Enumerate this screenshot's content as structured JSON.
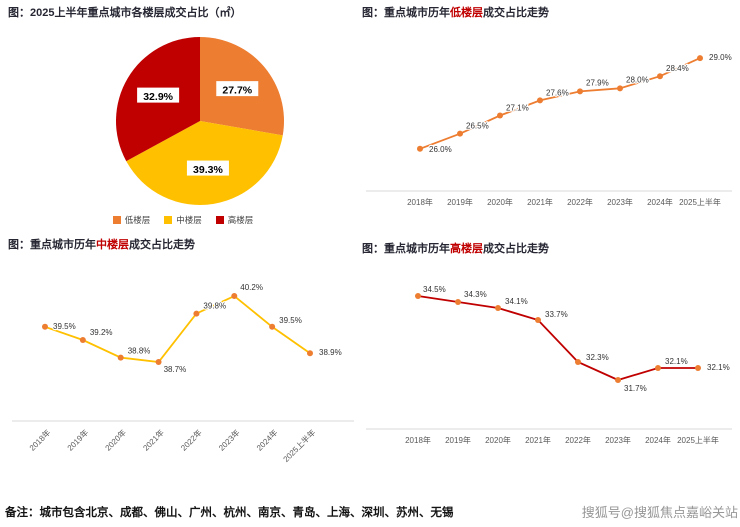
{
  "colors": {
    "orange": "#ED7D31",
    "yellow": "#FFC000",
    "red": "#C00000",
    "axis": "#D9D9D9"
  },
  "chart_data": [
    {
      "id": "floor-share-pie",
      "type": "pie",
      "title": "图：2025上半年重点城市各楼层成交占比（㎡）",
      "slices": [
        {
          "label": "低楼层",
          "value": 27.7,
          "data_label": "27.7%",
          "color": "#ED7D31"
        },
        {
          "label": "中楼层",
          "value": 39.3,
          "data_label": "39.3%",
          "color": "#FFC000"
        },
        {
          "label": "高楼层",
          "value": 32.9,
          "data_label": "32.9%",
          "color": "#C00000"
        }
      ],
      "legend_position": "bottom"
    },
    {
      "id": "low-floor-trend",
      "type": "line",
      "title_prefix": "图：重点城市历年",
      "title_highlight": "低楼层",
      "title_suffix": "成交占比走势",
      "highlight_color": "#C00000",
      "categories": [
        "2018年",
        "2019年",
        "2020年",
        "2021年",
        "2022年",
        "2023年",
        "2024年",
        "2025上半年"
      ],
      "values": [
        26.0,
        26.5,
        27.1,
        27.6,
        27.9,
        28.0,
        28.4,
        29.0
      ],
      "labels": [
        "26.0%",
        "26.5%",
        "27.1%",
        "27.6%",
        "27.9%",
        "28.0%",
        "28.4%",
        "29.0%"
      ],
      "line_color": "#ED7D31",
      "marker_color": "#ED7D31",
      "ylim": [
        25.0,
        29.5
      ],
      "grid": false
    },
    {
      "id": "mid-floor-trend",
      "type": "line",
      "title_prefix": "图：重点城市历年",
      "title_highlight": "中楼层",
      "title_suffix": "成交占比走势",
      "highlight_color": "#C00000",
      "categories": [
        "2018年",
        "2019年",
        "2020年",
        "2021年",
        "2022年",
        "2023年",
        "2024年",
        "2025上半年"
      ],
      "values": [
        39.5,
        39.2,
        38.8,
        38.7,
        39.8,
        40.2,
        39.5,
        38.9
      ],
      "labels": [
        "39.5%",
        "39.2%",
        "38.8%",
        "38.7%",
        "39.8%",
        "40.2%",
        "39.5%",
        "38.9%"
      ],
      "line_color": "#FFC000",
      "marker_color": "#ED7D31",
      "ylim": [
        38.2,
        40.7
      ],
      "grid": false
    },
    {
      "id": "high-floor-trend",
      "type": "line",
      "title_prefix": "图：重点城市历年",
      "title_highlight": "高楼层",
      "title_suffix": "成交占比走势",
      "highlight_color": "#C00000",
      "categories": [
        "2018年",
        "2019年",
        "2020年",
        "2021年",
        "2022年",
        "2023年",
        "2024年",
        "2025上半年"
      ],
      "values": [
        34.5,
        34.3,
        34.1,
        33.7,
        32.3,
        31.7,
        32.1,
        32.1
      ],
      "labels": [
        "34.5%",
        "34.3%",
        "34.1%",
        "33.7%",
        "32.3%",
        "31.7%",
        "32.1%",
        "32.1%"
      ],
      "line_color": "#C00000",
      "marker_color": "#ED7D31",
      "ylim": [
        30.8,
        35.3
      ],
      "grid": false
    }
  ],
  "footer": {
    "note": "备注：城市包含北京、成都、佛山、广州、杭州、南京、青岛、上海、深圳、苏州、无锡",
    "watermark": "搜狐号@搜狐焦点嘉峪关站"
  }
}
